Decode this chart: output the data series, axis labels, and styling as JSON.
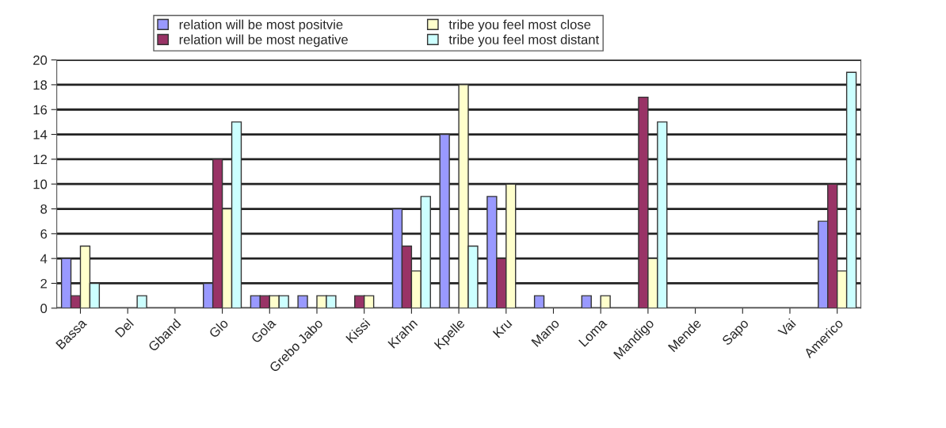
{
  "chart_data": {
    "type": "bar",
    "categories": [
      "Bassa",
      "Del",
      "Gband",
      "Glo",
      "Gola",
      "Grebo Jabo",
      "Kissi",
      "Krahn",
      "Kpelle",
      "Kru",
      "Mano",
      "Loma",
      "Mandigo",
      "Mende",
      "Sapo",
      "Vai",
      "Americo"
    ],
    "series": [
      {
        "name": "relation will be most positvie",
        "color": "#9999ff",
        "values": [
          4,
          0,
          0,
          2,
          1,
          1,
          0,
          8,
          14,
          9,
          1,
          1,
          0,
          0,
          0,
          0,
          7
        ]
      },
      {
        "name": "relation will be most negative",
        "color": "#993366",
        "values": [
          1,
          0,
          0,
          12,
          1,
          0,
          1,
          5,
          0,
          4,
          0,
          0,
          17,
          0,
          0,
          0,
          10
        ]
      },
      {
        "name": "tribe you feel most close",
        "color": "#ffffcc",
        "values": [
          5,
          0,
          0,
          8,
          1,
          1,
          1,
          3,
          18,
          10,
          0,
          1,
          4,
          0,
          0,
          0,
          3
        ]
      },
      {
        "name": "tribe you feel most distant",
        "color": "#ccffff",
        "values": [
          2,
          1,
          0,
          15,
          1,
          1,
          0,
          9,
          5,
          0,
          0,
          0,
          15,
          0,
          0,
          0,
          19
        ]
      }
    ],
    "ylim": [
      0,
      20
    ],
    "yticks": [
      0,
      2,
      4,
      6,
      8,
      10,
      12,
      14,
      16,
      18,
      20
    ],
    "grid": "y",
    "legend": "top"
  }
}
